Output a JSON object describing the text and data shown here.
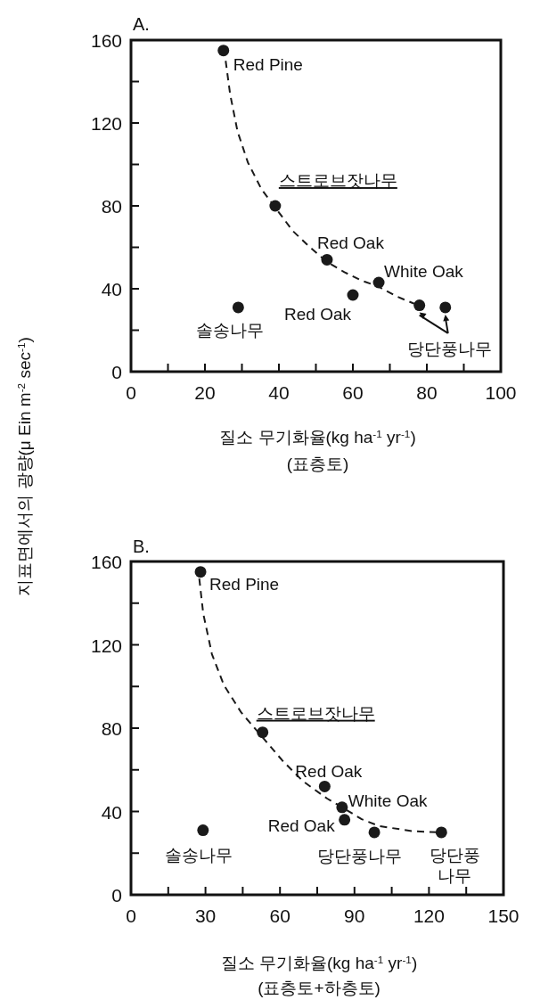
{
  "chart_data": [
    {
      "type": "scatter",
      "title": "A.",
      "xlabel": "질소 무기화율(kg ha$^{-1}$ yr$^{-1}$)\n(표층토)",
      "ylabel": "지표면에서의 광량(μ Ein m$^{-2}$ sec$^{-1}$)",
      "xlim": [
        0,
        100
      ],
      "ylim": [
        0,
        160
      ],
      "xticks": [
        0,
        {
          "value": 10,
          "label": null
        },
        20,
        {
          "value": 30,
          "label": null
        },
        40,
        {
          "value": 50,
          "label": null
        },
        60,
        {
          "value": 70,
          "label": null
        },
        80,
        {
          "value": 90,
          "label": null
        },
        100
      ],
      "yticks": [
        0,
        {
          "value": 20,
          "label": null
        },
        40,
        {
          "value": 60,
          "label": null
        },
        80,
        {
          "value": 100,
          "label": null
        },
        120,
        {
          "value": 140,
          "label": null
        },
        160
      ],
      "series": [
        {
          "type": "scatter",
          "marker": "circle",
          "color": "#1a1a1a",
          "x": [
            25,
            39,
            53,
            67,
            60,
            29,
            78,
            85
          ],
          "values": [
            155,
            80,
            54,
            43,
            37,
            31,
            32,
            31
          ]
        },
        {
          "type": "line",
          "marker": "none",
          "line_style": "dashed",
          "color": "#1a1a1a",
          "x": [
            25.6,
            26.8,
            28.8,
            31.6,
            35.3,
            39.1,
            43.7,
            48.4,
            53,
            57.7,
            62.3,
            67,
            71.6,
            76.3,
            78.6
          ],
          "values": [
            150,
            134,
            116,
            101,
            88,
            79,
            68,
            60,
            53,
            48,
            44,
            41,
            36.5,
            33,
            32
          ]
        }
      ],
      "annotations": [
        {
          "text": "Red Pine",
          "x": 25,
          "y": 155
        },
        {
          "text": "스트로브잣나무",
          "x": 39,
          "y": 80
        },
        {
          "text": "Red Oak",
          "x": 53,
          "y": 54
        },
        {
          "text": "White Oak",
          "x": 67,
          "y": 43
        },
        {
          "text": "Red Oak",
          "x": 60,
          "y": 37
        },
        {
          "text": "솔송나무",
          "x": 29,
          "y": 31
        },
        {
          "text": "당단풍나무",
          "x": 85,
          "y": 31
        }
      ]
    },
    {
      "type": "scatter",
      "title": "B.",
      "xlabel": "질소 무기화율(kg ha$^{-1}$ yr$^{-1}$)\n(표층토+하층토)",
      "xlim": [
        0,
        150
      ],
      "ylim": [
        0,
        160
      ],
      "xticks": [
        0,
        {
          "value": 15,
          "label": null
        },
        30,
        {
          "value": 45,
          "label": null
        },
        60,
        {
          "value": 75,
          "label": null
        },
        90,
        {
          "value": 105,
          "label": null
        },
        120,
        {
          "value": 135,
          "label": null
        },
        150
      ],
      "yticks": [
        0,
        {
          "value": 20,
          "label": null
        },
        40,
        {
          "value": 60,
          "label": null
        },
        80,
        {
          "value": 100,
          "label": null
        },
        120,
        {
          "value": 140,
          "label": null
        },
        160
      ],
      "series": [
        {
          "type": "scatter",
          "marker": "circle",
          "color": "#1a1a1a",
          "x": [
            28,
            53,
            78,
            85,
            86,
            29,
            98,
            125
          ],
          "values": [
            155,
            78,
            52,
            42,
            36,
            31,
            30,
            30
          ]
        },
        {
          "type": "line",
          "marker": "none",
          "line_style": "dashed",
          "color": "#1a1a1a",
          "x": [
            27.5,
            29.1,
            32.6,
            37.4,
            44.4,
            52.7,
            61,
            69.3,
            79,
            86,
            92.9,
            99.9,
            113.7,
            124.8
          ],
          "values": [
            151.8,
            135,
            115.5,
            100.7,
            87.5,
            76,
            64.4,
            54.5,
            46.2,
            41.3,
            36.3,
            33,
            30.5,
            30
          ]
        }
      ],
      "annotations": [
        {
          "text": "Red Pine",
          "x": 28,
          "y": 155
        },
        {
          "text": "스트로브잣나무",
          "x": 53,
          "y": 78
        },
        {
          "text": "Red Oak",
          "x": 78,
          "y": 52
        },
        {
          "text": "White Oak",
          "x": 85,
          "y": 42
        },
        {
          "text": "Red Oak",
          "x": 86,
          "y": 36
        },
        {
          "text": "솔송나무",
          "x": 29,
          "y": 31
        },
        {
          "text": "당단풍나무",
          "x": 98,
          "y": 30
        },
        {
          "text": "당단풍 나무",
          "x": 125,
          "y": 30
        }
      ]
    }
  ]
}
